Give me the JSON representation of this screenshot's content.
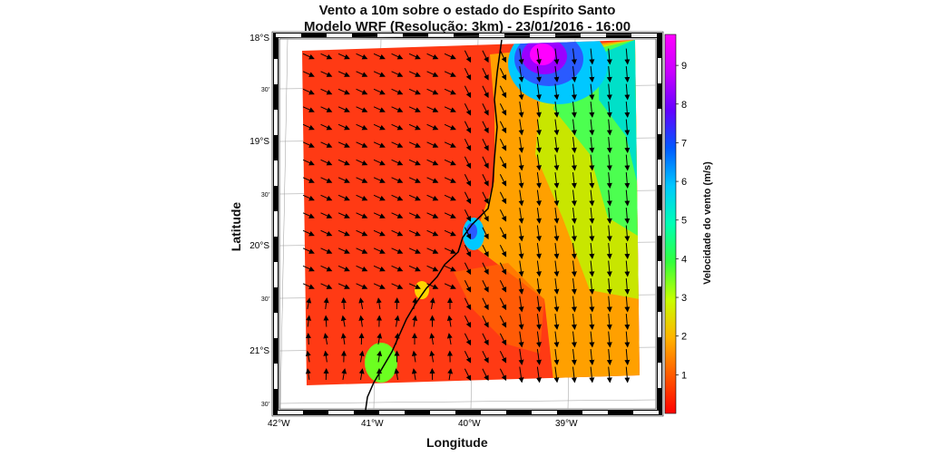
{
  "map": {
    "title": "Vento a 10m sobre o estado do Espírito Santo",
    "subtitle": "Modelo WRF (Resolução: 3km) - 23/01/2016 - 16:00",
    "xlabel": "Longitude",
    "ylabel": "Latitude",
    "lon_ticks": [
      "42°W",
      "41°W",
      "40°W",
      "39°W"
    ],
    "lat_ticks": [
      "18°S",
      "30'",
      "19°S",
      "30'",
      "20°S",
      "30'",
      "21°S",
      "30'"
    ],
    "colorbar": {
      "label": "Velocidade do vento (m/s)",
      "ticks": [
        "1",
        "2",
        "3",
        "4",
        "5",
        "6",
        "7",
        "8",
        "9"
      ],
      "colors": [
        "#ff0000",
        "#ff5a00",
        "#ffb400",
        "#c8ff00",
        "#32ff3c",
        "#00ffb4",
        "#00c8ff",
        "#005aff",
        "#6400ff",
        "#c800ff",
        "#ff00ff"
      ],
      "range": [
        0,
        9.8
      ]
    },
    "extent": {
      "lon_min": -42,
      "lon_max": -38.5,
      "lat_min": -21.5,
      "lat_max": -18
    },
    "colors": {
      "frame_black": "#000000",
      "frame_white": "#ffffff",
      "coast": "#000000",
      "arrow": "#000000"
    }
  }
}
